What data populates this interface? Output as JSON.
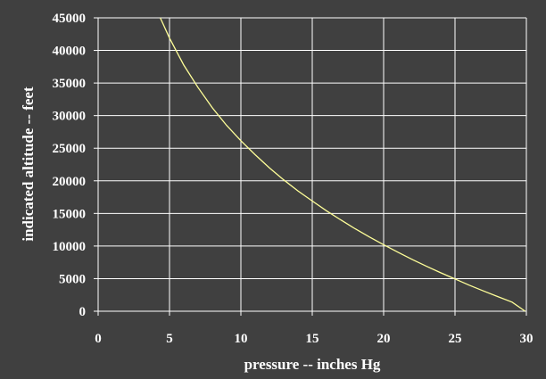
{
  "chart_data": {
    "type": "line",
    "title": "",
    "xlabel": "pressure -- inches Hg",
    "ylabel": "indicated altitude -- feet",
    "xlim": [
      0,
      30
    ],
    "ylim": [
      0,
      45000
    ],
    "x_ticks": [
      0,
      5,
      10,
      15,
      20,
      25,
      30
    ],
    "y_ticks": [
      0,
      5000,
      10000,
      15000,
      20000,
      25000,
      30000,
      35000,
      40000,
      45000
    ],
    "grid": true,
    "legend": "none",
    "colors": {
      "background": "#404040",
      "grid": "#ffffff",
      "line": "#ffff99",
      "text": "#ffffff"
    },
    "series": [
      {
        "x": [
          4.35,
          4.5,
          5,
          6,
          7,
          8,
          9,
          10,
          11,
          12,
          13,
          14,
          15,
          16,
          17,
          18,
          19,
          20,
          21,
          22,
          23,
          24,
          25,
          26,
          27,
          28,
          29,
          29.92
        ],
        "values": [
          45000,
          44300,
          41900,
          37750,
          34300,
          31200,
          28500,
          26150,
          24000,
          22000,
          20150,
          18450,
          16900,
          15400,
          14000,
          12650,
          11400,
          10200,
          9050,
          7950,
          6900,
          5900,
          4950,
          4000,
          3100,
          2250,
          1400,
          0
        ]
      }
    ]
  }
}
